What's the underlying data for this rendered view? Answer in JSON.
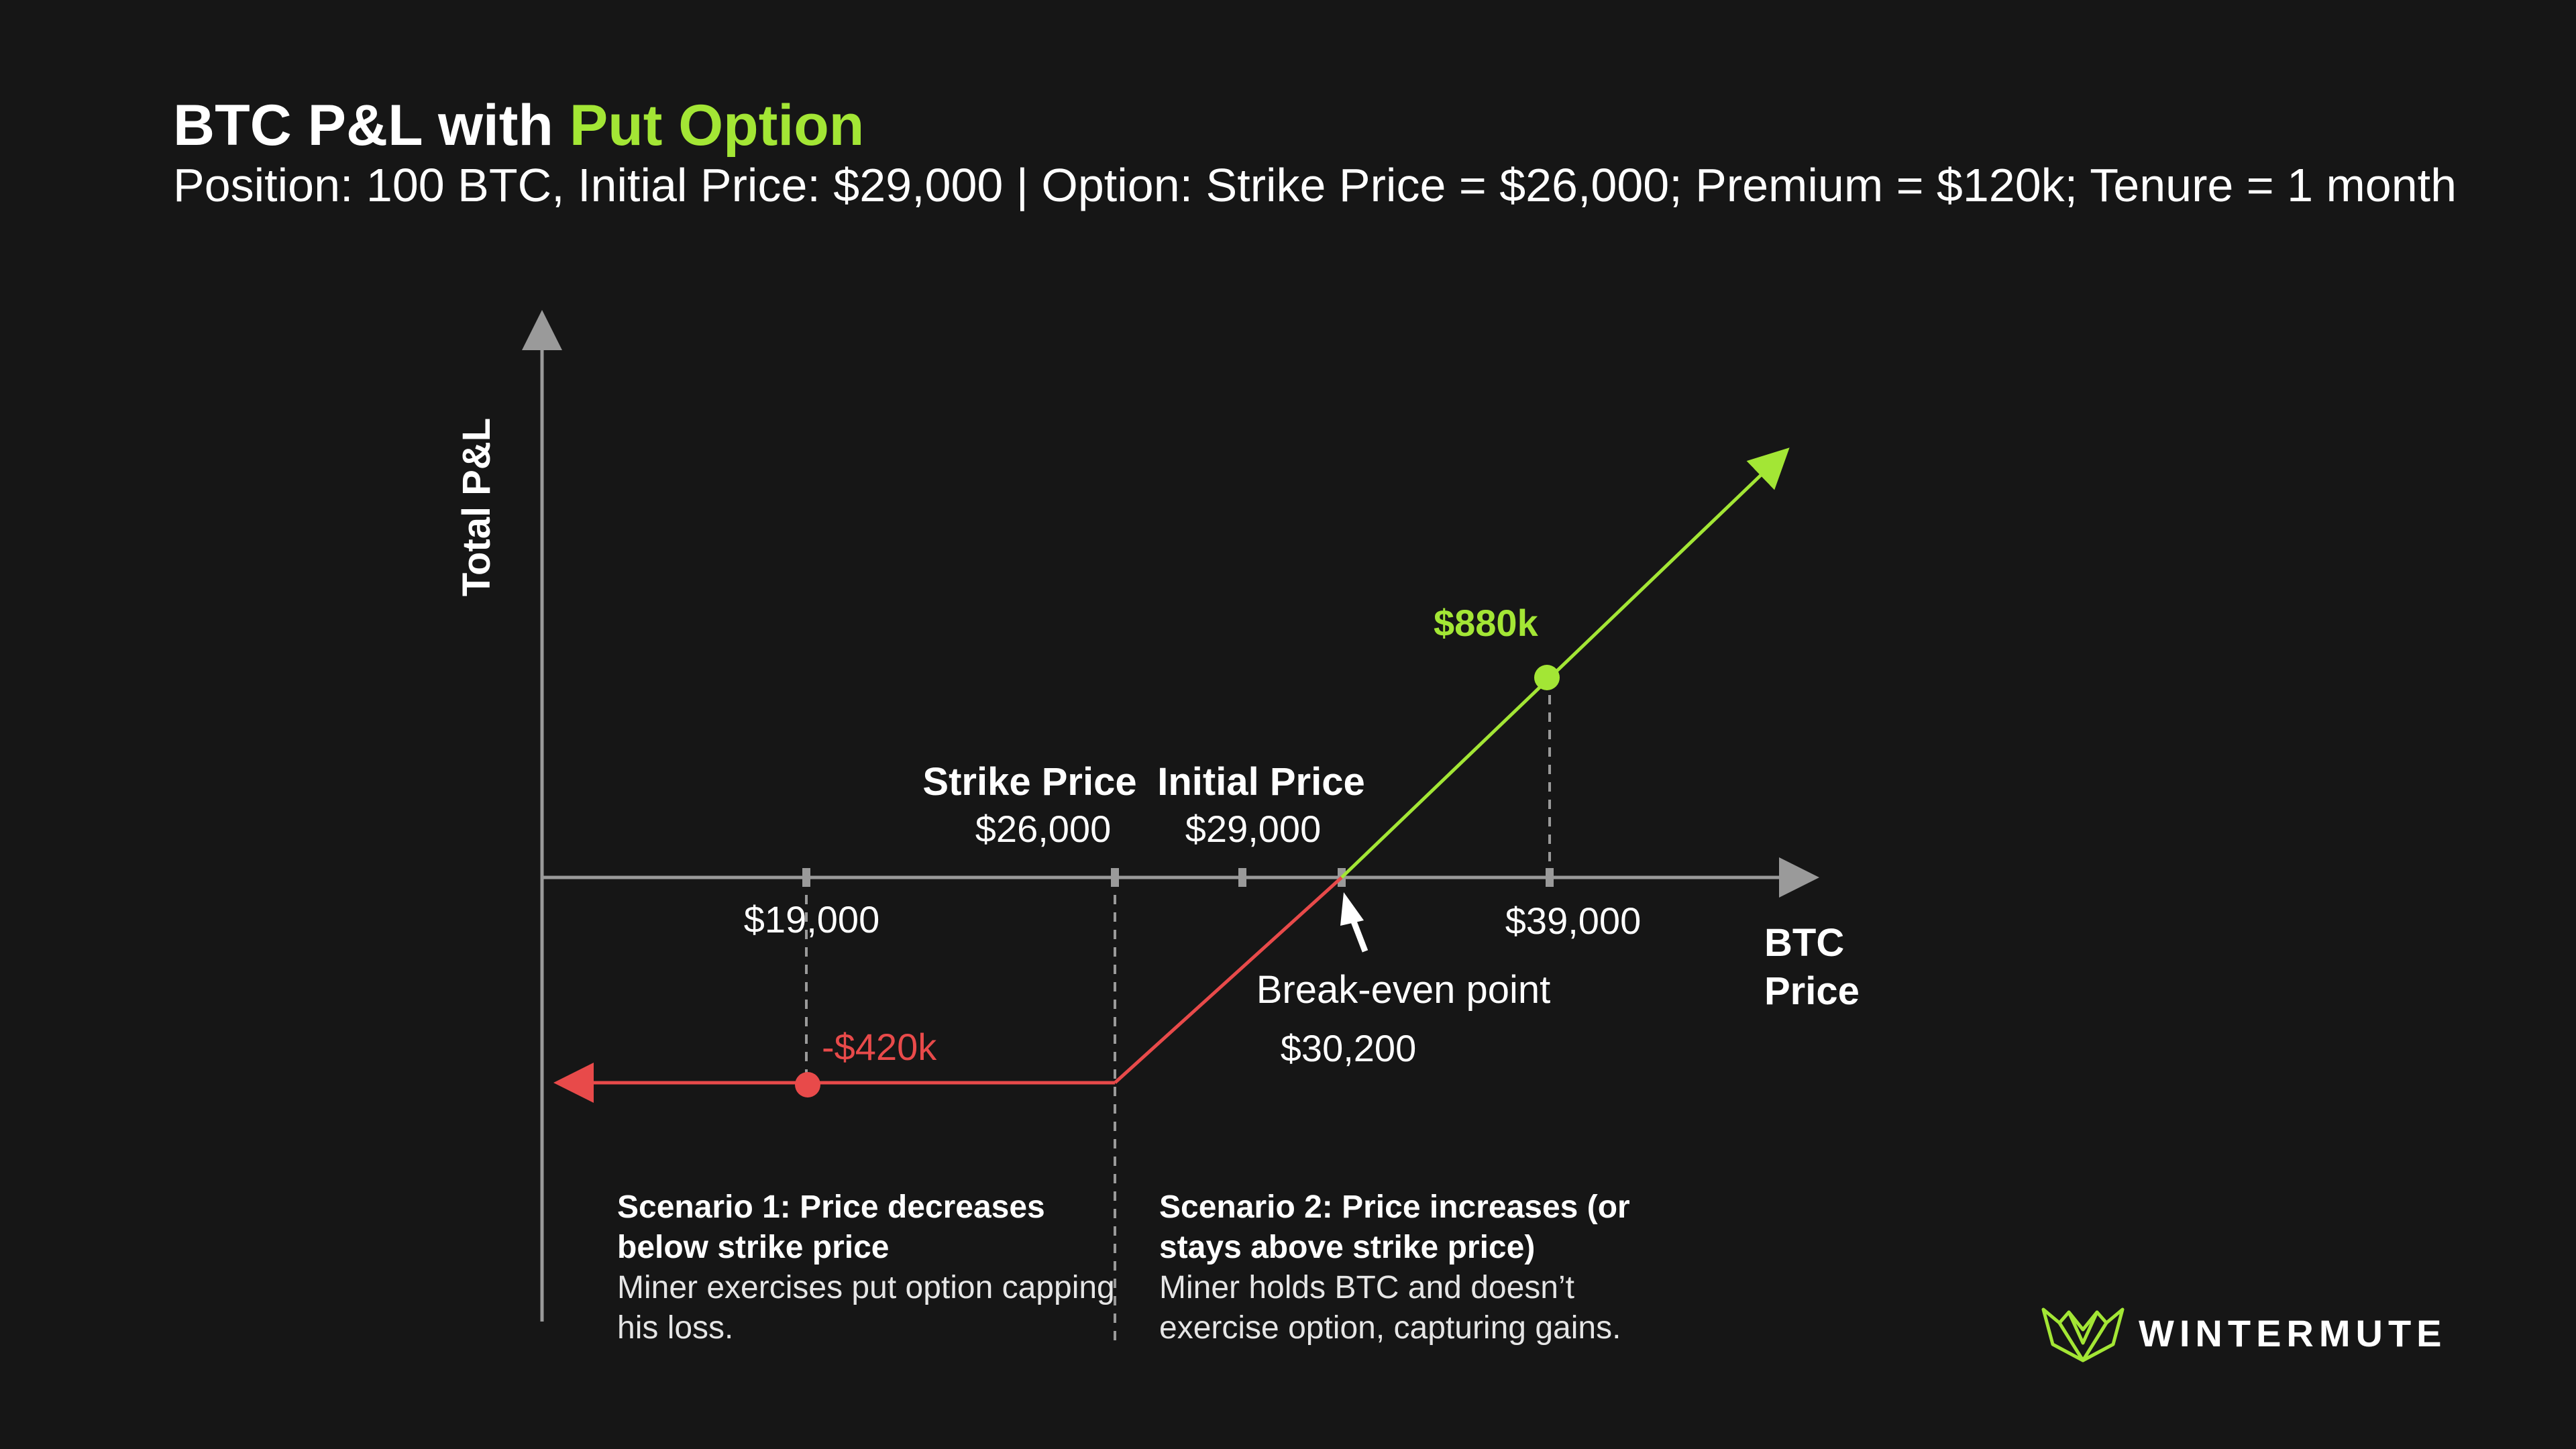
{
  "header": {
    "title_main": "BTC P&L with",
    "title_accent": "Put Option",
    "subtitle": "Position: 100 BTC, Initial Price: $29,000 | Option: Strike Price = $26,000; Premium = $120k; Tenure = 1 month"
  },
  "colors": {
    "background": "#161616",
    "accent_green": "#a3e635",
    "loss_red": "#e84a4a",
    "axis_gray": "#9a9a9a"
  },
  "chart_data": {
    "type": "line",
    "xlabel": "BTC Price",
    "ylabel": "Total P&L",
    "x_unit": "USD",
    "y_unit": "USD thousands",
    "grid": false,
    "series": [
      {
        "color": "#e84a4a",
        "points": [
          {
            "x": 17500,
            "y": -420
          },
          {
            "x": 26000,
            "y": -420
          },
          {
            "x": 30200,
            "y": 0
          }
        ]
      },
      {
        "color": "#a3e635",
        "points": [
          {
            "x": 30200,
            "y": 0
          },
          {
            "x": 39000,
            "y": 880
          },
          {
            "x": 43500,
            "y": 1330
          }
        ]
      }
    ],
    "ticks": [
      {
        "x": 19000,
        "label": "$19,000"
      },
      {
        "x": 26000,
        "label": "$26,000",
        "title": "Strike Price"
      },
      {
        "x": 29000,
        "label": "$29,000",
        "title": "Initial Price"
      },
      {
        "x": 30200,
        "label": "$30,200",
        "title": "Break-even point"
      },
      {
        "x": 39000,
        "label": "$39,000"
      }
    ],
    "highlight_points": [
      {
        "x": 19000,
        "y": -420,
        "label": "-$420k",
        "color": "#e84a4a"
      },
      {
        "x": 39000,
        "y": 880,
        "label": "$880k",
        "color": "#a3e635"
      }
    ]
  },
  "scenarios": [
    {
      "heading": "Scenario 1: Price decreases below strike price",
      "body": "Miner exercises put option capping his loss."
    },
    {
      "heading": "Scenario 2: Price increases (or stays above strike price)",
      "body": "Miner holds BTC and doesn’t exercise option, capturing gains."
    }
  ],
  "brand": {
    "logo_icon": "wintermute-logo-icon",
    "name": "WINTERMUTE"
  }
}
